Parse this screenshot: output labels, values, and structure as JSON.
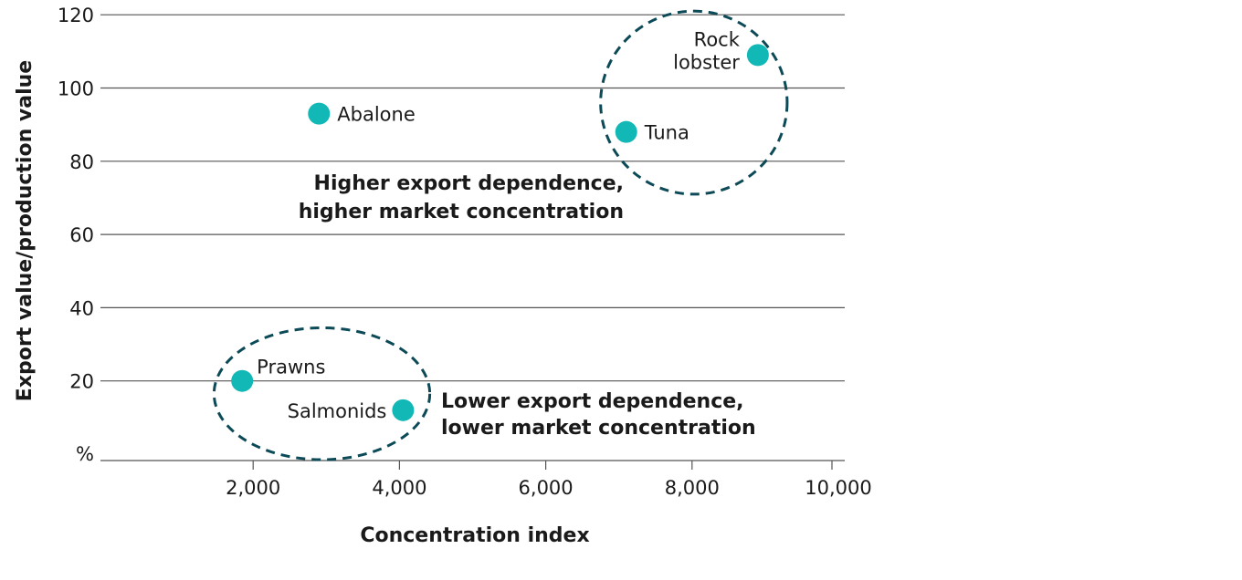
{
  "chart_data": {
    "type": "scatter",
    "xlabel": "Concentration index",
    "ylabel": "Export value/production value",
    "yunit_label": "%",
    "xlim": [
      0,
      10200
    ],
    "ylim": [
      0,
      122
    ],
    "xticks": [
      2000,
      4000,
      6000,
      8000,
      10000
    ],
    "xtick_labels": [
      "2,000",
      "4,000",
      "6,000",
      "8,000",
      "10,000"
    ],
    "yticks": [
      20,
      40,
      60,
      80,
      100,
      120
    ],
    "ytick_labels": [
      "20",
      "40",
      "60",
      "80",
      "100",
      "120"
    ],
    "grid": "horizontal",
    "points": [
      {
        "name": "Abalone",
        "x": 2900,
        "y": 93,
        "label_side": "right"
      },
      {
        "name": "Tuna",
        "x": 7100,
        "y": 88,
        "label_side": "right"
      },
      {
        "name": "Rock lobster",
        "x": 8900,
        "y": 109,
        "label_side": "left"
      },
      {
        "name": "Prawns",
        "x": 1850,
        "y": 20,
        "label_side": "right-up"
      },
      {
        "name": "Salmonids",
        "x": 4050,
        "y": 12,
        "label_side": "left"
      }
    ],
    "point_color": "#12b8b6",
    "annotation_color": "#0d4a57",
    "groups": [
      {
        "cx": 8025,
        "cy": 96,
        "rx": 1275,
        "ry": 25,
        "text": [
          "Higher export dependence,",
          "higher market concentration"
        ]
      },
      {
        "cx": 2940,
        "cy": 16.5,
        "rx": 1475,
        "ry": 18,
        "text": [
          "Lower export dependence,",
          "lower market concentration"
        ]
      }
    ]
  }
}
